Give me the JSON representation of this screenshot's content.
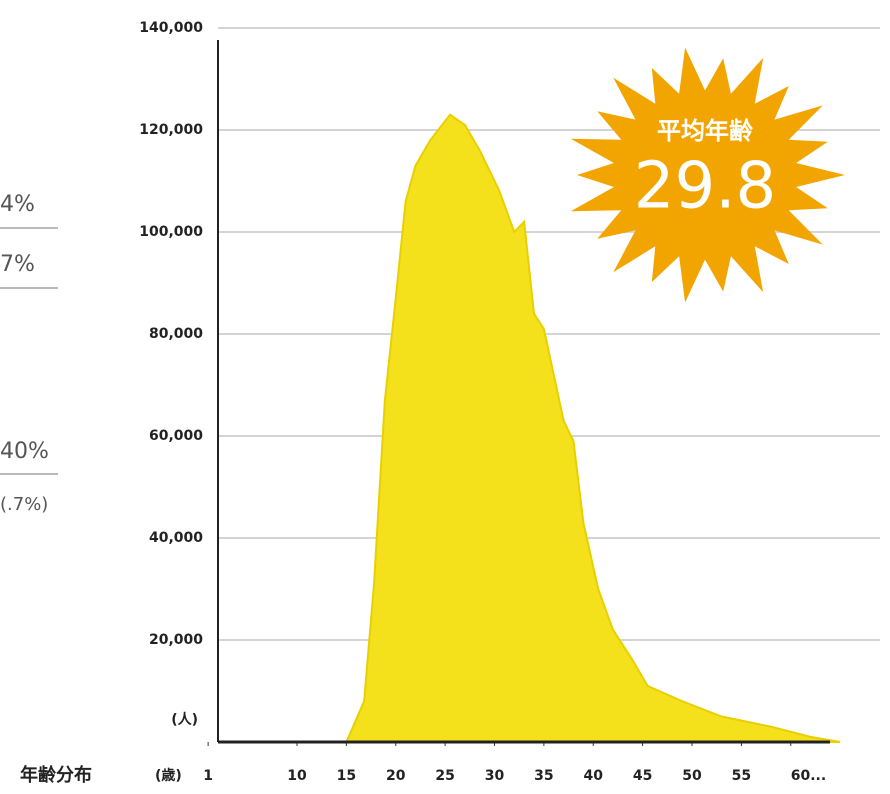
{
  "chart_data": {
    "type": "area",
    "y_axis_label": "(人)",
    "x_axis_title": "年齢分布",
    "x_axis_label": "(歳)",
    "x": [
      10,
      15,
      16.8,
      17.8,
      18.9,
      20,
      21,
      22,
      23.5,
      25.5,
      27,
      28.5,
      30.5,
      32,
      33,
      34,
      35,
      37,
      38,
      39,
      40.5,
      42,
      44,
      45.5,
      49,
      53,
      58,
      62,
      65
    ],
    "values": [
      0,
      0,
      8000,
      31000,
      67000,
      87000,
      106000,
      113000,
      118000,
      123000,
      121000,
      116000,
      108000,
      100000,
      102000,
      84000,
      81000,
      63000,
      59000,
      43000,
      30000,
      22000,
      16000,
      11000,
      8000,
      5000,
      3000,
      1000,
      0
    ],
    "color": "#f5e01c",
    "xlim": [
      2,
      66
    ],
    "ylim": [
      0,
      140000
    ],
    "xticks": [
      1,
      10,
      15,
      20,
      25,
      30,
      35,
      40,
      45,
      50,
      55,
      {
        "value": 60,
        "label": "60..."
      }
    ],
    "yticks": [
      {
        "value": 20000,
        "label": "20,000"
      },
      {
        "value": 40000,
        "label": "40,000"
      },
      {
        "value": 60000,
        "label": "60,000"
      },
      {
        "value": 80000,
        "label": "80,000"
      },
      {
        "value": 100000,
        "label": "100,000"
      },
      {
        "value": 120000,
        "label": "120,000"
      },
      {
        "value": 140000,
        "label": "140,000"
      }
    ],
    "grid": true,
    "badge": {
      "label": "平均年齢",
      "value": 29.8,
      "color": "#f2a500"
    },
    "side_texts": [
      "4%",
      "7%",
      "40%",
      "(.7%)"
    ]
  }
}
